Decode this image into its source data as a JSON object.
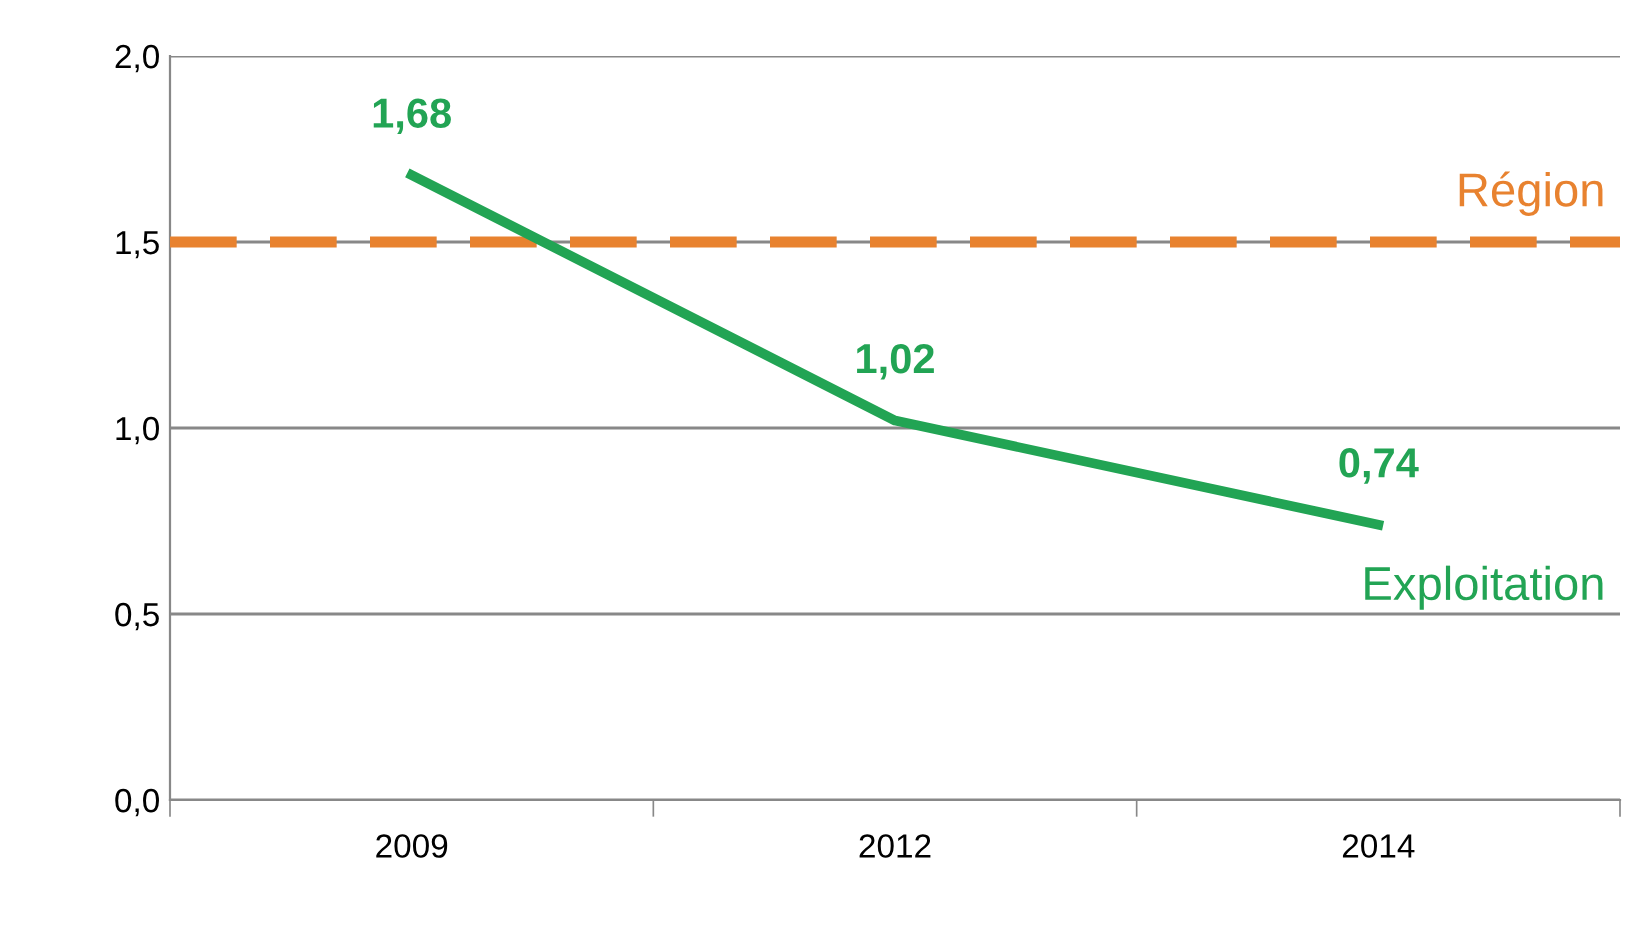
{
  "chart_data": {
    "type": "line",
    "categories": [
      "2009",
      "2012",
      "2014"
    ],
    "series": [
      {
        "name": "Exploitation",
        "color": "#22a454",
        "values": [
          1.68,
          1.02,
          0.74
        ],
        "value_labels": [
          "1,68",
          "1,02",
          "0,74"
        ]
      }
    ],
    "ylim": [
      0,
      2
    ],
    "yticks": [
      {
        "value": 0,
        "label": "0,0"
      },
      {
        "value": 0.5,
        "label": "0,5"
      },
      {
        "value": 1,
        "label": "1,0"
      },
      {
        "value": 1.5,
        "label": "1,5"
      },
      {
        "value": 2,
        "label": "2,0"
      }
    ],
    "ref_lines": [
      {
        "axis": "y",
        "value": 1.5,
        "label": "Région",
        "color": "#e8822f",
        "line_style": "dashed"
      }
    ],
    "grid": "y",
    "legend": false,
    "marker": "none",
    "line_style": "solid"
  }
}
